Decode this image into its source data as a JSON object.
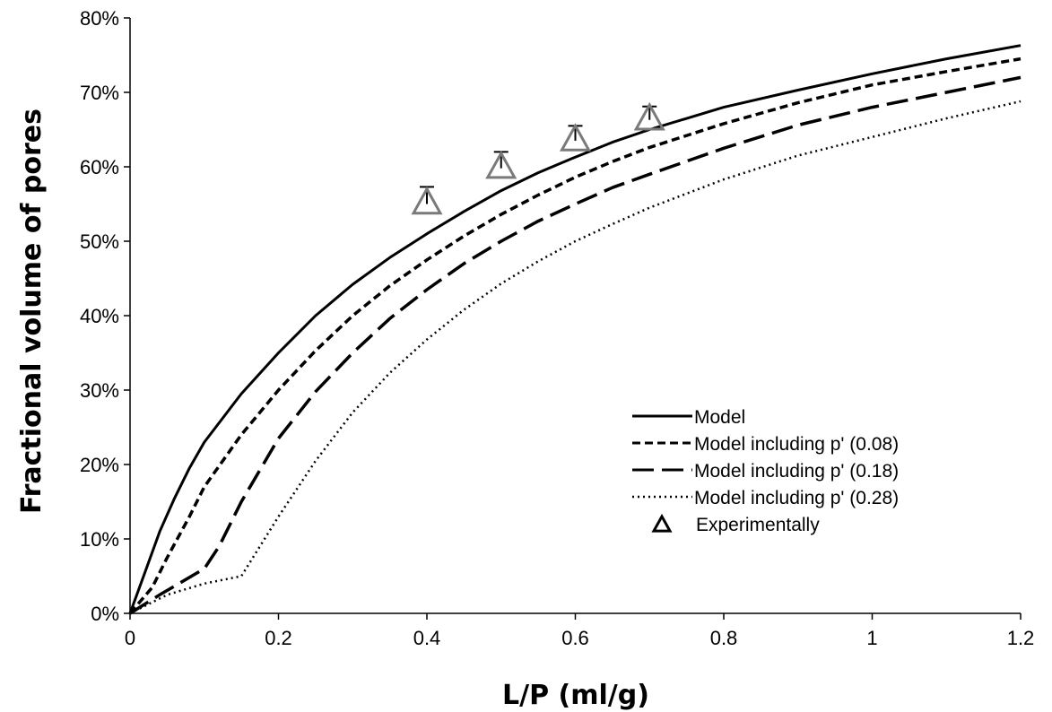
{
  "chart_data": {
    "type": "line",
    "xlabel": "L/P (ml/g)",
    "ylabel": "Fractional volume of pores",
    "xlim": [
      0,
      1.2
    ],
    "ylim": [
      0,
      80
    ],
    "x_ticks": [
      "0",
      "0.2",
      "0.4",
      "0.6",
      "0.8",
      "1",
      "1.2"
    ],
    "y_ticks": [
      "0%",
      "10%",
      "20%",
      "30%",
      "40%",
      "50%",
      "60%",
      "70%",
      "80%"
    ],
    "grid": false,
    "legend_position": "bottom-right",
    "series": [
      {
        "name": "Model",
        "style": "solid",
        "color": "#000000",
        "points": [
          [
            0,
            0
          ],
          [
            0.02,
            5.5
          ],
          [
            0.04,
            11
          ],
          [
            0.06,
            15.5
          ],
          [
            0.08,
            19.5
          ],
          [
            0.1,
            23
          ],
          [
            0.15,
            29.5
          ],
          [
            0.2,
            35
          ],
          [
            0.25,
            40
          ],
          [
            0.3,
            44.2
          ],
          [
            0.35,
            47.8
          ],
          [
            0.4,
            51
          ],
          [
            0.45,
            54
          ],
          [
            0.5,
            56.8
          ],
          [
            0.55,
            59.2
          ],
          [
            0.6,
            61.3
          ],
          [
            0.65,
            63.3
          ],
          [
            0.7,
            65
          ],
          [
            0.8,
            68
          ],
          [
            0.9,
            70.3
          ],
          [
            1.0,
            72.5
          ],
          [
            1.1,
            74.5
          ],
          [
            1.2,
            76.3
          ]
        ]
      },
      {
        "name": "Model including p' (0.08)",
        "style": "short-dash",
        "color": "#000000",
        "points": [
          [
            0,
            0
          ],
          [
            0.03,
            3.5
          ],
          [
            0.05,
            7.5
          ],
          [
            0.08,
            13
          ],
          [
            0.1,
            17
          ],
          [
            0.15,
            24
          ],
          [
            0.2,
            30
          ],
          [
            0.25,
            35.3
          ],
          [
            0.3,
            40
          ],
          [
            0.35,
            44
          ],
          [
            0.4,
            47.5
          ],
          [
            0.45,
            50.7
          ],
          [
            0.5,
            53.6
          ],
          [
            0.55,
            56.2
          ],
          [
            0.6,
            58.6
          ],
          [
            0.65,
            60.7
          ],
          [
            0.7,
            62.6
          ],
          [
            0.8,
            65.8
          ],
          [
            0.9,
            68.6
          ],
          [
            1.0,
            71
          ],
          [
            1.1,
            72.8
          ],
          [
            1.2,
            74.5
          ]
        ]
      },
      {
        "name": "Model including p' (0.18)",
        "style": "long-dash",
        "color": "#000000",
        "points": [
          [
            0,
            0
          ],
          [
            0.04,
            2.5
          ],
          [
            0.1,
            6
          ],
          [
            0.12,
            9
          ],
          [
            0.15,
            15
          ],
          [
            0.2,
            23.5
          ],
          [
            0.25,
            29.8
          ],
          [
            0.3,
            35
          ],
          [
            0.35,
            39.6
          ],
          [
            0.4,
            43.5
          ],
          [
            0.45,
            47
          ],
          [
            0.5,
            50
          ],
          [
            0.55,
            52.7
          ],
          [
            0.6,
            55
          ],
          [
            0.65,
            57.2
          ],
          [
            0.7,
            59
          ],
          [
            0.8,
            62.5
          ],
          [
            0.9,
            65.6
          ],
          [
            1.0,
            68
          ],
          [
            1.1,
            70
          ],
          [
            1.2,
            72
          ]
        ]
      },
      {
        "name": "Model including p' (0.28)",
        "style": "dotted",
        "color": "#000000",
        "points": [
          [
            0,
            0
          ],
          [
            0.05,
            2.5
          ],
          [
            0.1,
            4
          ],
          [
            0.15,
            5
          ],
          [
            0.2,
            13
          ],
          [
            0.25,
            20.5
          ],
          [
            0.3,
            27
          ],
          [
            0.35,
            32.3
          ],
          [
            0.4,
            36.8
          ],
          [
            0.45,
            40.8
          ],
          [
            0.5,
            44.3
          ],
          [
            0.55,
            47.3
          ],
          [
            0.6,
            50
          ],
          [
            0.65,
            52.3
          ],
          [
            0.7,
            54.5
          ],
          [
            0.8,
            58.3
          ],
          [
            0.9,
            61.5
          ],
          [
            1.0,
            64
          ],
          [
            1.1,
            66.5
          ],
          [
            1.2,
            68.8
          ]
        ]
      },
      {
        "name": "Experimentally",
        "style": "marker-triangle",
        "color": "#7a7a7a",
        "points": [
          [
            0.4,
            55
          ],
          [
            0.5,
            59.8
          ],
          [
            0.6,
            63.5
          ],
          [
            0.7,
            66.3
          ]
        ],
        "error": [
          2.3,
          2.2,
          2.0,
          1.8
        ]
      }
    ]
  }
}
